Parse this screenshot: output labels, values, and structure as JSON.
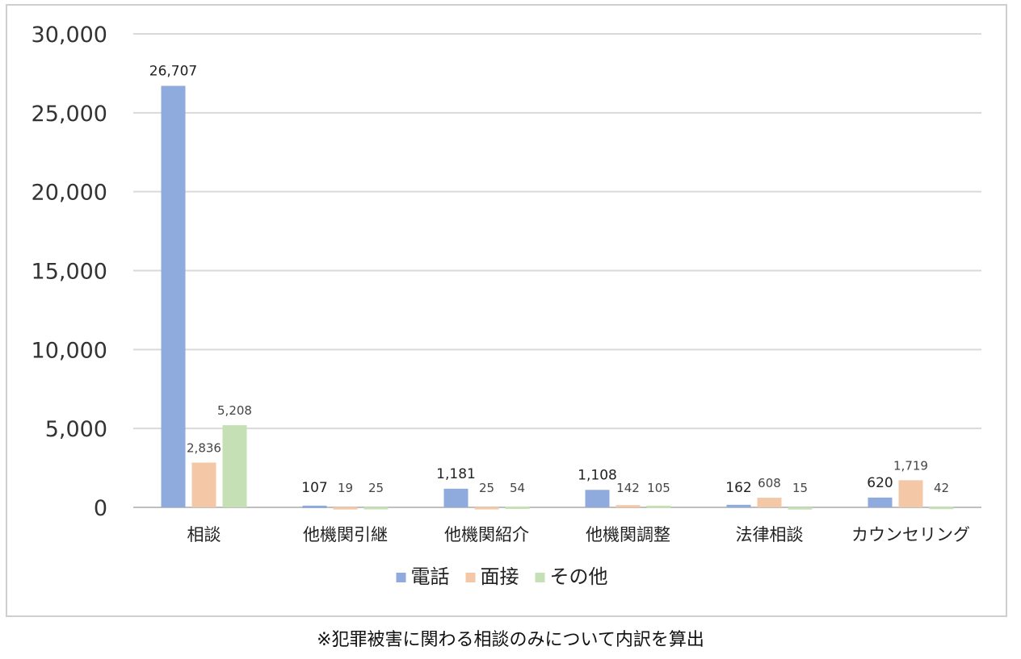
{
  "chart_data": {
    "type": "bar",
    "categories": [
      "相談",
      "他機関引継",
      "他機関紹介",
      "他機関調整",
      "法律相談",
      "カウンセリング"
    ],
    "series": [
      {
        "name": "電話",
        "color": "#8faadc",
        "values": [
          26707,
          107,
          1181,
          1108,
          162,
          620
        ],
        "labels": [
          "26,707",
          "107",
          "1,181",
          "1,108",
          "162",
          "620"
        ]
      },
      {
        "name": "面接",
        "color": "#f4c7a6",
        "values": [
          2836,
          19,
          25,
          142,
          608,
          1719
        ],
        "labels": [
          "2,836",
          "19",
          "25",
          "142",
          "608",
          "1,719"
        ]
      },
      {
        "name": "その他",
        "color": "#c5e0b4",
        "values": [
          5208,
          25,
          54,
          105,
          15,
          42
        ],
        "labels": [
          "5,208",
          "25",
          "54",
          "105",
          "15",
          "42"
        ]
      }
    ],
    "yticks": [
      "0",
      "5,000",
      "10,000",
      "15,000",
      "20,000",
      "25,000",
      "30,000"
    ],
    "ylim": [
      0,
      30000
    ],
    "grid": true,
    "legend": "bottom",
    "title": "",
    "xlabel": "",
    "ylabel": ""
  },
  "footnote": "※犯罪被害に関わる相談のみについて内訳を算出"
}
